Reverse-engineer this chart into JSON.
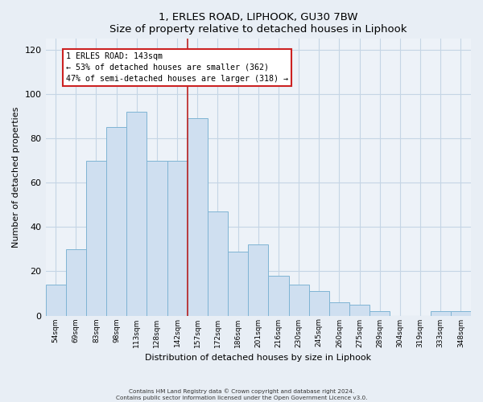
{
  "title": "1, ERLES ROAD, LIPHOOK, GU30 7BW",
  "subtitle": "Size of property relative to detached houses in Liphook",
  "xlabel": "Distribution of detached houses by size in Liphook",
  "ylabel": "Number of detached properties",
  "bar_labels": [
    "54sqm",
    "69sqm",
    "83sqm",
    "98sqm",
    "113sqm",
    "128sqm",
    "142sqm",
    "157sqm",
    "172sqm",
    "186sqm",
    "201sqm",
    "216sqm",
    "230sqm",
    "245sqm",
    "260sqm",
    "275sqm",
    "289sqm",
    "304sqm",
    "319sqm",
    "333sqm",
    "348sqm"
  ],
  "bar_heights": [
    14,
    30,
    70,
    85,
    92,
    70,
    70,
    89,
    47,
    29,
    32,
    18,
    14,
    11,
    6,
    5,
    2,
    0,
    0,
    2,
    2
  ],
  "bar_color": "#cfdff0",
  "bar_edge_color": "#7fb4d4",
  "vline_color": "#bb2222",
  "annotation_title": "1 ERLES ROAD: 143sqm",
  "annotation_line2": "← 53% of detached houses are smaller (362)",
  "annotation_line3": "47% of semi-detached houses are larger (318) →",
  "annotation_box_color": "#ffffff",
  "annotation_box_edge": "#cc2222",
  "ylim": [
    0,
    125
  ],
  "yticks": [
    0,
    20,
    40,
    60,
    80,
    100,
    120
  ],
  "footer_line1": "Contains HM Land Registry data © Crown copyright and database right 2024.",
  "footer_line2": "Contains public sector information licensed under the Open Government Licence v3.0.",
  "bg_color": "#e8eef5",
  "plot_bg_color": "#edf2f8",
  "grid_color": "#c5d5e5"
}
